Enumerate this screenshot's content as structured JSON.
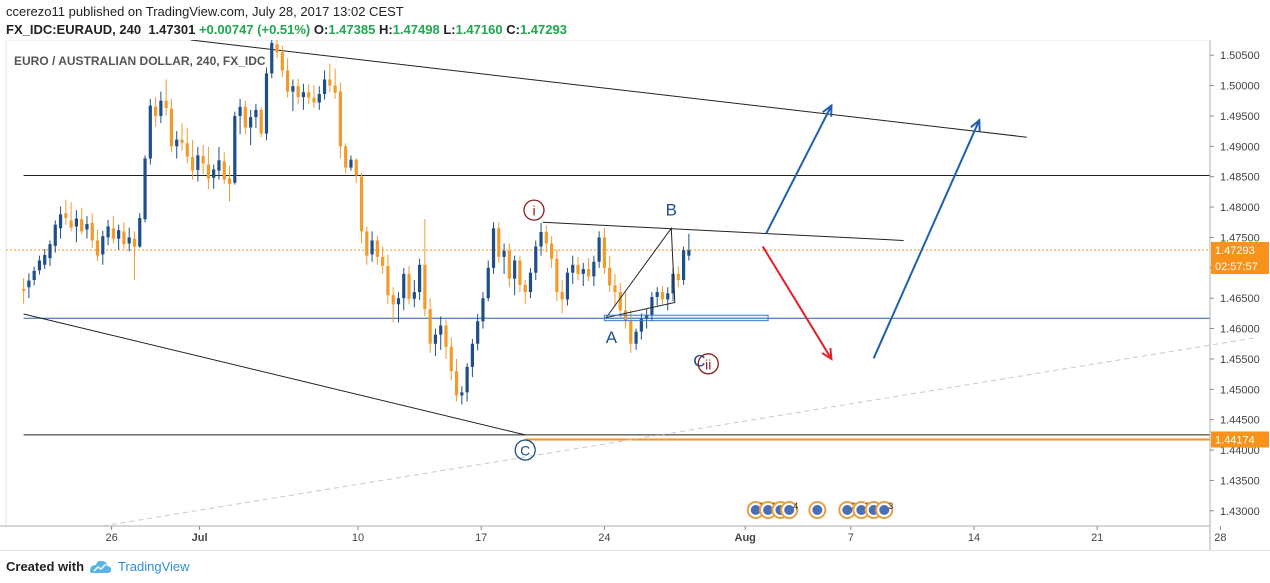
{
  "header": {
    "author": "ccerezo11",
    "published_text": "published on TradingView.com, July 28, 2017 13:02 CEST",
    "symbol": "FX_IDC:EURAUD, 240",
    "last": "1.47301",
    "change": "+0.00747 (+0.51%)",
    "open_label": "O:",
    "open": "1.47385",
    "high_label": "H:",
    "high": "1.47498",
    "low_label": "L:",
    "low": "1.47160",
    "close_label": "C:",
    "close": "1.47293"
  },
  "footer": {
    "created_with": "Created with",
    "brand": "TradingView"
  },
  "chart_data": {
    "type": "candlestick",
    "title": "EURO / AUSTRALIAN DOLLAR, 240, FX_IDC",
    "y_range": [
      1.4275,
      1.5075
    ],
    "y_ticks": [
      "1.50500",
      "1.50000",
      "1.49500",
      "1.49000",
      "1.48500",
      "1.48000",
      "1.47500",
      "1.47000",
      "1.46500",
      "1.46000",
      "1.45500",
      "1.45000",
      "1.44500",
      "1.44000",
      "1.43500",
      "1.43000"
    ],
    "y_tick_values": [
      1.505,
      1.5,
      1.495,
      1.49,
      1.485,
      1.48,
      1.475,
      1.47,
      1.465,
      1.46,
      1.455,
      1.45,
      1.445,
      1.44,
      1.435,
      1.43
    ],
    "x_ticks": [
      "26",
      "Jul",
      "10",
      "17",
      "24",
      "Aug",
      "7",
      "14",
      "21",
      "28"
    ],
    "x_tick_days": [
      26,
      31,
      40,
      47,
      54,
      62,
      68,
      75,
      82,
      89
    ],
    "x_tick_bold": [
      false,
      true,
      false,
      false,
      false,
      true,
      false,
      false,
      false,
      false
    ],
    "price_badge": {
      "label": "1.47293",
      "value": 1.47293,
      "timer": "02:57:57",
      "color": "#f7931a"
    },
    "level_badge": {
      "label": "1.44174",
      "value": 1.44174,
      "color": "#f7931a"
    },
    "horizontal_lines": [
      {
        "value": 1.4852,
        "color": "#222222",
        "start_day": 21.0
      },
      {
        "value": 1.4617,
        "color": "#1f5fb0",
        "start_day": 21.0
      },
      {
        "value": 1.4425,
        "color": "#222222",
        "start_day": 21.0
      }
    ],
    "trend_lines": [
      {
        "p1": [
          30.5,
          1.5075
        ],
        "p2": [
          78.0,
          1.4915
        ],
        "color": "#222222"
      },
      {
        "p1": [
          21.0,
          1.4624
        ],
        "p2": [
          49.5,
          1.4425
        ],
        "color": "#222222"
      },
      {
        "p1": [
          50.5,
          1.4775
        ],
        "p2": [
          71.0,
          1.4745
        ],
        "color": "#222222"
      },
      {
        "p1": [
          25.5,
          1.4275
        ],
        "p2": [
          91.0,
          1.4585
        ],
        "color": "#c8c8c8",
        "dashed": true
      }
    ],
    "triangle": [
      [
        54.1,
        1.4618
      ],
      [
        57.8,
        1.4765
      ],
      [
        58.0,
        1.4643
      ]
    ],
    "rect": {
      "x1": 54.0,
      "x2": 63.3,
      "y1": 1.4622,
      "y2": 1.4613
    },
    "arrows": [
      {
        "p1": [
          63.2,
          1.4757
        ],
        "p2": [
          66.9,
          1.4967
        ],
        "color": "#1f5fb0"
      },
      {
        "p1": [
          69.3,
          1.4551
        ],
        "p2": [
          75.3,
          1.4943
        ],
        "color": "#1f5fb0"
      },
      {
        "p1": [
          63.0,
          1.4735
        ],
        "p2": [
          66.9,
          1.455
        ],
        "color": "#e0202a"
      }
    ],
    "wave_labels": [
      {
        "text": "i",
        "day": 50.0,
        "value": 1.4795,
        "style": "circle",
        "color": "#8b1a1a"
      },
      {
        "text": "B",
        "day": 57.8,
        "value": 1.4795,
        "style": "plain",
        "color": "#1f4f8a"
      },
      {
        "text": "A",
        "day": 54.4,
        "value": 1.4585,
        "style": "plain",
        "color": "#1f4f8a"
      },
      {
        "text": "C",
        "day": 59.4,
        "value": 1.4547,
        "style": "plain",
        "color": "#1f4f8a"
      },
      {
        "text": "ii",
        "day": 59.9,
        "value": 1.4542,
        "style": "circle",
        "color": "#8b1a1a"
      },
      {
        "text": "C",
        "day": 49.5,
        "value": 1.44,
        "style": "circle",
        "color": "#1f4f8a"
      }
    ],
    "event_icons": [
      {
        "day": 62.6,
        "text": "2"
      },
      {
        "day": 63.3,
        "text": "3"
      },
      {
        "day": 64.0,
        "text": "3"
      },
      {
        "day": 64.5,
        "text": "4"
      },
      {
        "day": 66.1,
        "text": ""
      },
      {
        "day": 67.8,
        "text": "2"
      },
      {
        "day": 68.6,
        "text": "2"
      },
      {
        "day": 69.3,
        "text": "2"
      },
      {
        "day": 69.9,
        "text": "3"
      }
    ],
    "candles": [
      [
        21.0,
        1.4665,
        1.4683,
        1.4641,
        1.4662
      ],
      [
        21.3,
        1.4668,
        1.4691,
        1.465,
        1.4679
      ],
      [
        21.6,
        1.468,
        1.4702,
        1.4671,
        1.4695
      ],
      [
        21.9,
        1.4696,
        1.472,
        1.4689,
        1.4712
      ],
      [
        22.2,
        1.4705,
        1.4731,
        1.4698,
        1.4721
      ],
      [
        22.5,
        1.4716,
        1.4745,
        1.4703,
        1.4739
      ],
      [
        22.8,
        1.4736,
        1.4778,
        1.4725,
        1.4771
      ],
      [
        23.1,
        1.4765,
        1.4801,
        1.4748,
        1.4788
      ],
      [
        23.4,
        1.479,
        1.4812,
        1.4771,
        1.4782
      ],
      [
        23.7,
        1.4778,
        1.4808,
        1.476,
        1.4766
      ],
      [
        24.0,
        1.4768,
        1.4795,
        1.4742,
        1.4781
      ],
      [
        24.3,
        1.478,
        1.4799,
        1.4755,
        1.476
      ],
      [
        24.6,
        1.4763,
        1.4785,
        1.4748,
        1.4772
      ],
      [
        24.9,
        1.4774,
        1.479,
        1.4733,
        1.4745
      ],
      [
        25.2,
        1.4745,
        1.4763,
        1.4711,
        1.472
      ],
      [
        25.5,
        1.4722,
        1.4761,
        1.4705,
        1.4752
      ],
      [
        25.8,
        1.475,
        1.4779,
        1.4737,
        1.4768
      ],
      [
        26.1,
        1.4765,
        1.4785,
        1.474,
        1.4748
      ],
      [
        26.4,
        1.4748,
        1.4771,
        1.473,
        1.4762
      ],
      [
        26.7,
        1.476,
        1.4775,
        1.4731,
        1.4739
      ],
      [
        27.0,
        1.474,
        1.4766,
        1.4727,
        1.475
      ],
      [
        27.3,
        1.4748,
        1.476,
        1.468,
        1.4735
      ],
      [
        27.6,
        1.4735,
        1.479,
        1.4733,
        1.4782
      ],
      [
        27.9,
        1.478,
        1.4885,
        1.4775,
        1.488
      ],
      [
        28.2,
        1.488,
        1.4978,
        1.487,
        1.4967
      ],
      [
        28.5,
        1.4965,
        1.4981,
        1.4932,
        1.495
      ],
      [
        28.8,
        1.495,
        1.499,
        1.4938,
        1.4975
      ],
      [
        29.1,
        1.4975,
        1.501,
        1.4951,
        1.4963
      ],
      [
        29.4,
        1.4962,
        1.4978,
        1.489,
        1.49
      ],
      [
        29.7,
        1.49,
        1.4925,
        1.488,
        1.4911
      ],
      [
        30.0,
        1.4911,
        1.4938,
        1.4893,
        1.4906
      ],
      [
        30.3,
        1.4905,
        1.493,
        1.4872,
        1.4883
      ],
      [
        30.6,
        1.4882,
        1.491,
        1.4845,
        1.486
      ],
      [
        30.9,
        1.4861,
        1.4899,
        1.4842,
        1.4885
      ],
      [
        31.2,
        1.4884,
        1.4902,
        1.4855,
        1.4872
      ],
      [
        31.5,
        1.487,
        1.4899,
        1.4829,
        1.4847
      ],
      [
        31.8,
        1.4848,
        1.487,
        1.483,
        1.4862
      ],
      [
        32.1,
        1.486,
        1.4899,
        1.4845,
        1.4877
      ],
      [
        32.4,
        1.4875,
        1.489,
        1.4838,
        1.4845
      ],
      [
        32.7,
        1.4847,
        1.4868,
        1.4809,
        1.4838
      ],
      [
        33.0,
        1.484,
        1.4957,
        1.4837,
        1.495
      ],
      [
        33.3,
        1.495,
        1.4978,
        1.492,
        1.4965
      ],
      [
        33.6,
        1.4965,
        1.4975,
        1.492,
        1.4931
      ],
      [
        33.9,
        1.4931,
        1.496,
        1.4902,
        1.4948
      ],
      [
        34.2,
        1.4948,
        1.497,
        1.493,
        1.496
      ],
      [
        34.5,
        1.496,
        1.4965,
        1.4915,
        1.4921
      ],
      [
        34.8,
        1.4921,
        1.503,
        1.491,
        1.502
      ],
      [
        35.1,
        1.502,
        1.508,
        1.5012,
        1.507
      ],
      [
        35.4,
        1.5068,
        1.5085,
        1.5045,
        1.5055
      ],
      [
        35.7,
        1.5055,
        1.5066,
        1.5014,
        1.5025
      ],
      [
        36.0,
        1.5025,
        1.5045,
        1.498,
        1.499
      ],
      [
        36.3,
        1.499,
        1.501,
        1.4958,
        1.4999
      ],
      [
        36.6,
        1.4999,
        1.5011,
        1.497,
        1.4981
      ],
      [
        36.9,
        1.4981,
        1.5003,
        1.496,
        1.4989
      ],
      [
        37.2,
        1.4989,
        1.5002,
        1.497,
        1.498
      ],
      [
        37.5,
        1.498,
        1.5001,
        1.4963,
        1.4972
      ],
      [
        37.8,
        1.4972,
        1.4999,
        1.496,
        1.4986
      ],
      [
        38.1,
        1.4986,
        1.5025,
        1.4977,
        1.501
      ],
      [
        38.4,
        1.501,
        1.5036,
        1.4989,
        1.5
      ],
      [
        38.7,
        1.5,
        1.5028,
        1.4978,
        1.4988
      ],
      [
        39.0,
        1.499,
        1.5005,
        1.488,
        1.49
      ],
      [
        39.3,
        1.49,
        1.4905,
        1.4855,
        1.4865
      ],
      [
        39.6,
        1.4865,
        1.4885,
        1.486,
        1.4878
      ],
      [
        39.9,
        1.4878,
        1.488,
        1.484,
        1.4852
      ],
      [
        40.2,
        1.485,
        1.4856,
        1.474,
        1.476
      ],
      [
        40.5,
        1.476,
        1.4768,
        1.4705,
        1.472
      ],
      [
        40.8,
        1.4722,
        1.476,
        1.471,
        1.4745
      ],
      [
        41.1,
        1.4745,
        1.4753,
        1.4705,
        1.4718
      ],
      [
        41.4,
        1.4718,
        1.4735,
        1.469,
        1.4703
      ],
      [
        41.7,
        1.4703,
        1.4722,
        1.464,
        1.4655
      ],
      [
        42.0,
        1.4655,
        1.4668,
        1.461,
        1.464
      ],
      [
        42.3,
        1.464,
        1.466,
        1.461,
        1.465
      ],
      [
        42.6,
        1.465,
        1.47,
        1.463,
        1.469
      ],
      [
        42.9,
        1.469,
        1.4703,
        1.464,
        1.4649
      ],
      [
        43.2,
        1.4649,
        1.468,
        1.4635,
        1.466
      ],
      [
        43.5,
        1.466,
        1.4715,
        1.4647,
        1.4705
      ],
      [
        43.8,
        1.4705,
        1.478,
        1.462,
        1.4632
      ],
      [
        44.1,
        1.4632,
        1.465,
        1.456,
        1.4575
      ],
      [
        44.4,
        1.4575,
        1.46,
        1.4555,
        1.459
      ],
      [
        44.7,
        1.459,
        1.462,
        1.4565,
        1.4605
      ],
      [
        45.0,
        1.4605,
        1.4615,
        1.455,
        1.457
      ],
      [
        45.3,
        1.457,
        1.4585,
        1.4515,
        1.453
      ],
      [
        45.6,
        1.453,
        1.455,
        1.448,
        1.449
      ],
      [
        45.9,
        1.449,
        1.4505,
        1.4475,
        1.4495
      ],
      [
        46.2,
        1.4495,
        1.4543,
        1.448,
        1.4537
      ],
      [
        46.5,
        1.4537,
        1.4583,
        1.452,
        1.4575
      ],
      [
        46.8,
        1.4575,
        1.4624,
        1.4564,
        1.4612
      ],
      [
        47.1,
        1.4612,
        1.466,
        1.46,
        1.465
      ],
      [
        47.4,
        1.465,
        1.4712,
        1.4645,
        1.47
      ],
      [
        47.7,
        1.47,
        1.4775,
        1.469,
        1.4765
      ],
      [
        48.0,
        1.4765,
        1.4775,
        1.4708,
        1.4718
      ],
      [
        48.3,
        1.4718,
        1.474,
        1.469,
        1.4728
      ],
      [
        48.6,
        1.4728,
        1.474,
        1.4668,
        1.4682
      ],
      [
        48.9,
        1.4682,
        1.472,
        1.4655,
        1.4712
      ],
      [
        49.2,
        1.4712,
        1.472,
        1.466,
        1.4672
      ],
      [
        49.5,
        1.4672,
        1.468,
        1.464,
        1.466
      ],
      [
        49.8,
        1.466,
        1.47,
        1.465,
        1.4692
      ],
      [
        50.1,
        1.4692,
        1.4745,
        1.468,
        1.4735
      ],
      [
        50.4,
        1.4735,
        1.4774,
        1.472,
        1.4759
      ],
      [
        50.7,
        1.4759,
        1.477,
        1.4725,
        1.474
      ],
      [
        51.0,
        1.474,
        1.4752,
        1.47,
        1.4715
      ],
      [
        51.3,
        1.4715,
        1.473,
        1.4645,
        1.466
      ],
      [
        51.6,
        1.466,
        1.468,
        1.4625,
        1.4648
      ],
      [
        51.9,
        1.4648,
        1.47,
        1.4638,
        1.4692
      ],
      [
        52.2,
        1.4692,
        1.472,
        1.4673,
        1.4705
      ],
      [
        52.5,
        1.4705,
        1.4718,
        1.468,
        1.469
      ],
      [
        52.8,
        1.469,
        1.4708,
        1.467,
        1.4698
      ],
      [
        53.1,
        1.4698,
        1.4716,
        1.4678,
        1.4686
      ],
      [
        53.4,
        1.4686,
        1.472,
        1.467,
        1.471
      ],
      [
        53.7,
        1.471,
        1.476,
        1.47,
        1.475
      ],
      [
        54.0,
        1.475,
        1.4766,
        1.469,
        1.47
      ],
      [
        54.3,
        1.47,
        1.472,
        1.466,
        1.4671
      ],
      [
        54.6,
        1.4671,
        1.469,
        1.4636,
        1.466
      ],
      [
        54.9,
        1.466,
        1.4675,
        1.4617,
        1.463
      ],
      [
        55.2,
        1.463,
        1.466,
        1.46,
        1.4612
      ],
      [
        55.5,
        1.4612,
        1.463,
        1.456,
        1.4575
      ],
      [
        55.8,
        1.4575,
        1.46,
        1.4565,
        1.4595
      ],
      [
        56.1,
        1.4595,
        1.4625,
        1.4582,
        1.4616
      ],
      [
        56.4,
        1.4616,
        1.4632,
        1.46,
        1.4622
      ],
      [
        56.7,
        1.4622,
        1.466,
        1.4612,
        1.4652
      ],
      [
        57.0,
        1.4652,
        1.4668,
        1.4638,
        1.466
      ],
      [
        57.3,
        1.466,
        1.467,
        1.464,
        1.4648
      ],
      [
        57.6,
        1.4648,
        1.4668,
        1.463,
        1.4658
      ],
      [
        57.9,
        1.4658,
        1.47,
        1.4645,
        1.469
      ],
      [
        58.2,
        1.469,
        1.4703,
        1.4668,
        1.468
      ],
      [
        58.5,
        1.468,
        1.4735,
        1.4672,
        1.4729
      ],
      [
        58.8,
        1.472,
        1.4756,
        1.4712,
        1.4729
      ]
    ]
  }
}
